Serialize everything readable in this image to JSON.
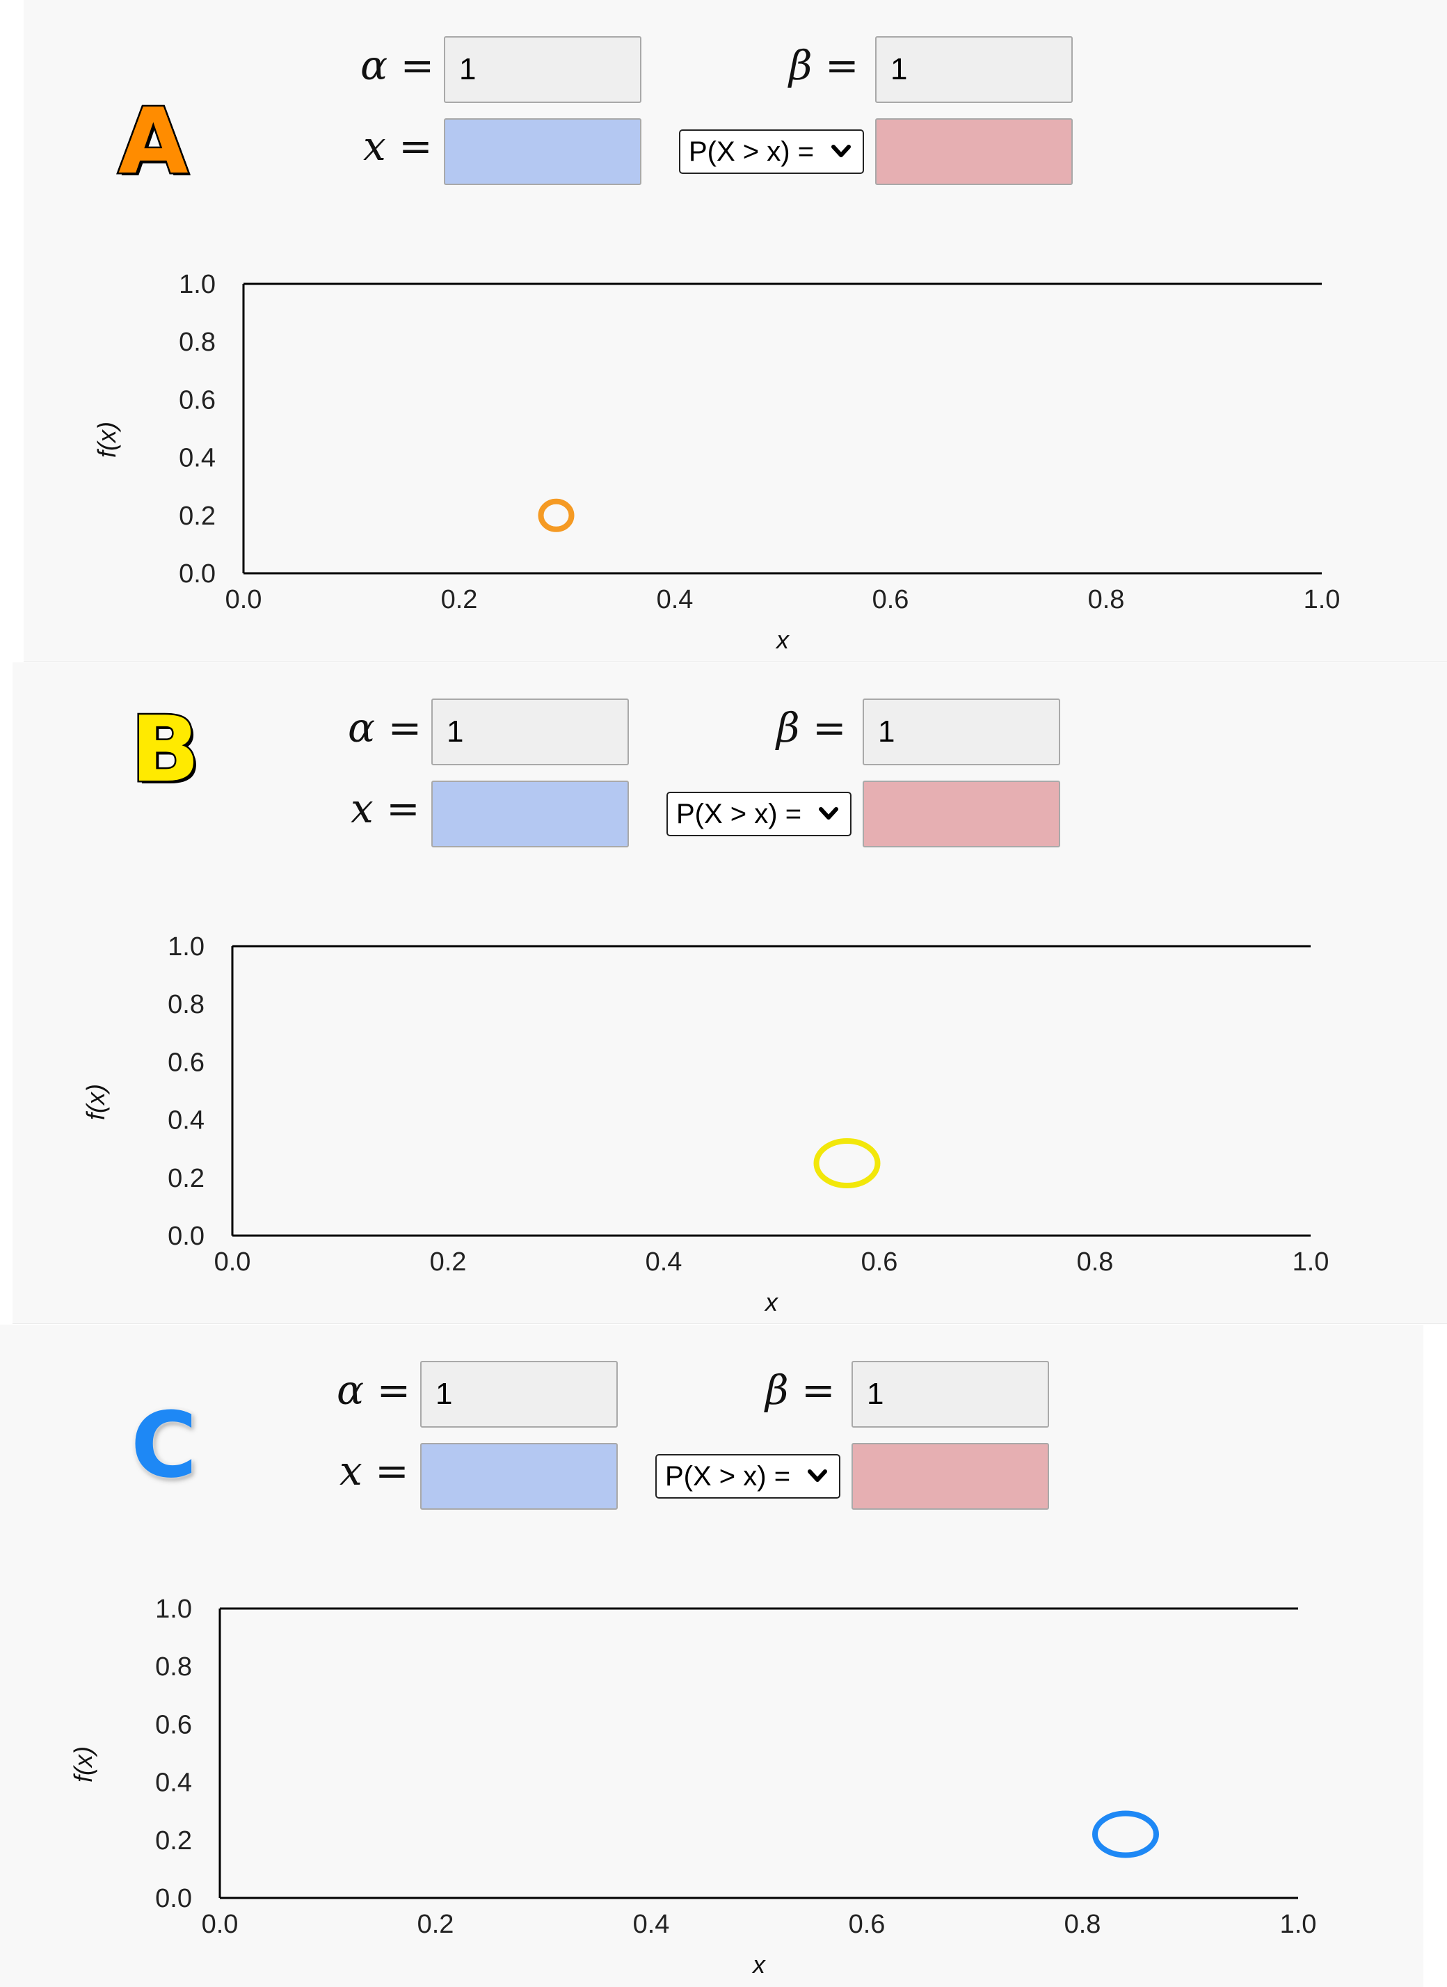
{
  "panels": [
    {
      "id": "A",
      "badge": "A",
      "badge_color": "#ff8c00",
      "alpha_label": "α =",
      "beta_label": "β =",
      "x_label": "x =",
      "alpha_value": "1",
      "beta_value": "1",
      "x_value": "",
      "prob_value": "",
      "select_value": "P(X > x) =",
      "marker_color": "#f59a23",
      "chart_data": {
        "type": "scatter",
        "xlabel": "x",
        "ylabel": "f(x)",
        "xlim": [
          0,
          1
        ],
        "ylim": [
          0,
          1
        ],
        "x_ticks": [
          "0.0",
          "0.2",
          "0.4",
          "0.6",
          "0.8",
          "1.0"
        ],
        "y_ticks": [
          "0.0",
          "0.2",
          "0.4",
          "0.6",
          "0.8",
          "1.0"
        ],
        "points": [
          {
            "x": 0.29,
            "y": 0.2
          }
        ]
      }
    },
    {
      "id": "B",
      "badge": "B",
      "badge_color": "#ffea00",
      "alpha_label": "α =",
      "beta_label": "β =",
      "x_label": "x =",
      "alpha_value": "1",
      "beta_value": "1",
      "x_value": "",
      "prob_value": "",
      "select_value": "P(X > x) =",
      "marker_color": "#f2e70a",
      "chart_data": {
        "type": "scatter",
        "xlabel": "x",
        "ylabel": "f(x)",
        "xlim": [
          0,
          1
        ],
        "ylim": [
          0,
          1
        ],
        "x_ticks": [
          "0.0",
          "0.2",
          "0.4",
          "0.6",
          "0.8",
          "1.0"
        ],
        "y_ticks": [
          "0.0",
          "0.2",
          "0.4",
          "0.6",
          "0.8",
          "1.0"
        ],
        "points": [
          {
            "x": 0.57,
            "y": 0.25
          }
        ]
      }
    },
    {
      "id": "C",
      "badge": "C",
      "badge_color": "#1e88f5",
      "alpha_label": "α =",
      "beta_label": "β =",
      "x_label": "x =",
      "alpha_value": "1",
      "beta_value": "1",
      "x_value": "",
      "prob_value": "",
      "select_value": "P(X > x) =",
      "marker_color": "#1e88f5",
      "chart_data": {
        "type": "scatter",
        "xlabel": "x",
        "ylabel": "f(x)",
        "xlim": [
          0,
          1
        ],
        "ylim": [
          0,
          1
        ],
        "x_ticks": [
          "0.0",
          "0.2",
          "0.4",
          "0.6",
          "0.8",
          "1.0"
        ],
        "y_ticks": [
          "0.0",
          "0.2",
          "0.4",
          "0.6",
          "0.8",
          "1.0"
        ],
        "points": [
          {
            "x": 0.84,
            "y": 0.22
          }
        ]
      }
    }
  ]
}
